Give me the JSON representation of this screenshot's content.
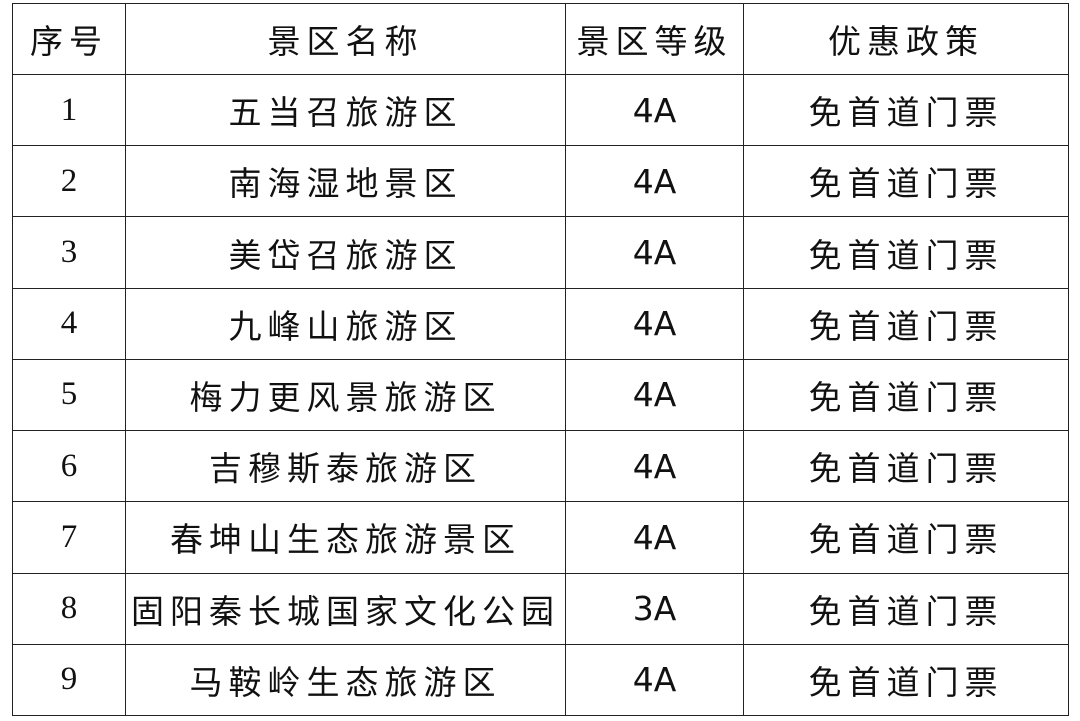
{
  "table": {
    "header": [
      "序号",
      "景区名称",
      "景区等级",
      "优惠政策"
    ],
    "rows": [
      [
        "1",
        "五当召旅游区",
        "4A",
        "免首道门票"
      ],
      [
        "2",
        "南海湿地景区",
        "4A",
        "免首道门票"
      ],
      [
        "3",
        "美岱召旅游区",
        "4A",
        "免首道门票"
      ],
      [
        "4",
        "九峰山旅游区",
        "4A",
        "免首道门票"
      ],
      [
        "5",
        "梅力更风景旅游区",
        "4A",
        "免首道门票"
      ],
      [
        "6",
        "吉穆斯泰旅游区",
        "4A",
        "免首道门票"
      ],
      [
        "7",
        "春坤山生态旅游景区",
        "4A",
        "免首道门票"
      ],
      [
        "8",
        "固阳秦长城国家文化公园",
        "3A",
        "免首道门票"
      ],
      [
        "9",
        "马鞍岭生态旅游区",
        "4A",
        "免首道门票"
      ]
    ]
  }
}
